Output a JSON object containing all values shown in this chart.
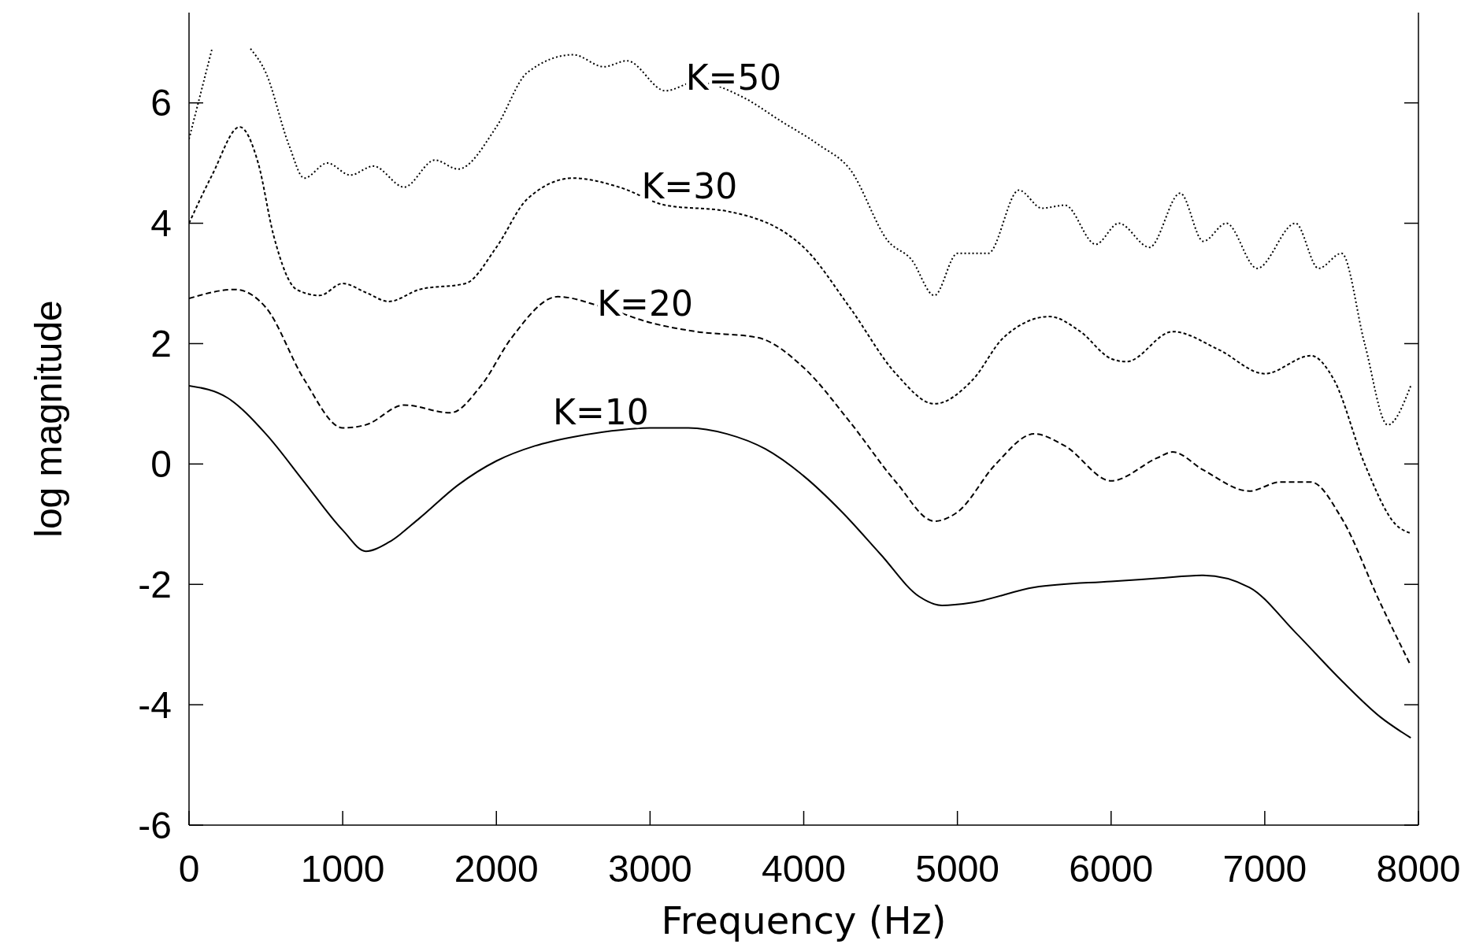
{
  "chart_data": {
    "type": "line",
    "xlabel": "Frequency (Hz)",
    "ylabel": "log magnitude",
    "xlim": [
      0,
      8000
    ],
    "xticks": [
      0,
      1000,
      2000,
      3000,
      4000,
      5000,
      6000,
      7000,
      8000
    ],
    "ylim": [
      -6,
      7.5
    ],
    "yticks": [
      -6,
      -4,
      -2,
      0,
      2,
      4,
      6
    ],
    "grid": false,
    "series": [
      {
        "name": "K=10",
        "color": "#000000",
        "line_style": "solid",
        "x": [
          0,
          250,
          500,
          750,
          1000,
          1150,
          1300,
          1500,
          1750,
          2000,
          2250,
          2500,
          2750,
          3000,
          3250,
          3500,
          3750,
          4000,
          4250,
          4500,
          4750,
          4900,
          5100,
          5500,
          6000,
          6300,
          6600,
          6900,
          7200,
          7500,
          7750,
          7950
        ],
        "values": [
          1.3,
          1.1,
          0.5,
          -0.3,
          -1.1,
          -1.45,
          -1.3,
          -0.9,
          -0.35,
          0.05,
          0.3,
          0.45,
          0.55,
          0.6,
          0.6,
          0.5,
          0.25,
          -0.2,
          -0.8,
          -1.5,
          -2.2,
          -2.35,
          -2.3,
          -2.05,
          -1.95,
          -1.9,
          -1.85,
          -2.05,
          -2.8,
          -3.6,
          -4.2,
          -4.55
        ]
      },
      {
        "name": "K=20",
        "color": "#000000",
        "line_style": "dashed",
        "x": [
          0,
          300,
          500,
          750,
          1000,
          1150,
          1400,
          1700,
          1900,
          2100,
          2400,
          2700,
          3000,
          3300,
          3700,
          4000,
          4300,
          4600,
          4850,
          5000,
          5250,
          5500,
          5700,
          6000,
          6300,
          6400,
          6600,
          6900,
          7100,
          7300,
          7500,
          7750,
          7950
        ],
        "values": [
          2.75,
          2.9,
          2.6,
          1.4,
          0.6,
          0.65,
          0.98,
          0.85,
          1.3,
          2.1,
          2.78,
          2.6,
          2.35,
          2.2,
          2.1,
          1.6,
          0.7,
          -0.3,
          -0.95,
          -0.8,
          0,
          0.5,
          0.3,
          -0.28,
          0.1,
          0.2,
          -0.1,
          -0.45,
          -0.3,
          -0.3,
          -0.9,
          -2.3,
          -3.35
        ]
      },
      {
        "name": "K=30",
        "color": "#000000",
        "line_style": "dashed",
        "x": [
          0,
          150,
          330,
          450,
          550,
          700,
          850,
          1000,
          1150,
          1300,
          1500,
          1800,
          2000,
          2200,
          2500,
          2800,
          3100,
          3500,
          4000,
          4300,
          4600,
          4850,
          5100,
          5300,
          5600,
          5800,
          6000,
          6100,
          6400,
          6700,
          7000,
          7300,
          7450,
          7650,
          7850,
          7950
        ],
        "values": [
          4.0,
          4.8,
          5.6,
          5.0,
          3.8,
          2.9,
          2.8,
          3.0,
          2.85,
          2.7,
          2.9,
          3.0,
          3.6,
          4.4,
          4.75,
          4.6,
          4.3,
          4.2,
          3.6,
          2.6,
          1.5,
          1.0,
          1.4,
          2.1,
          2.45,
          2.2,
          1.75,
          1.7,
          2.2,
          1.9,
          1.5,
          1.8,
          1.4,
          0.0,
          -1.0,
          -1.15
        ]
      },
      {
        "name": "K=50",
        "color": "#000000",
        "line_style": "dotted",
        "x": [
          0,
          150,
          220,
          300,
          400,
          500,
          650,
          750,
          900,
          1050,
          1200,
          1400,
          1600,
          1750,
          2000,
          2200,
          2500,
          2700,
          2850,
          3100,
          3300,
          3600,
          3850,
          4100,
          4300,
          4550,
          4700,
          4850,
          5000,
          5200,
          5400,
          5550,
          5700,
          5900,
          6050,
          6250,
          6450,
          6600,
          6750,
          6950,
          7200,
          7350,
          7500,
          7650,
          7800,
          7950
        ],
        "values": [
          5.4,
          6.9,
          null,
          null,
          6.9,
          6.5,
          5.3,
          4.75,
          5.0,
          4.8,
          4.95,
          4.6,
          5.05,
          4.9,
          5.6,
          6.5,
          6.8,
          6.6,
          6.7,
          6.2,
          6.35,
          6.1,
          5.7,
          5.3,
          4.9,
          3.7,
          3.4,
          2.8,
          3.5,
          3.5,
          4.55,
          4.25,
          4.3,
          3.65,
          4.0,
          3.6,
          4.5,
          3.7,
          4.0,
          3.25,
          4.0,
          3.25,
          3.5,
          2.0,
          0.65,
          1.3
        ]
      }
    ]
  }
}
